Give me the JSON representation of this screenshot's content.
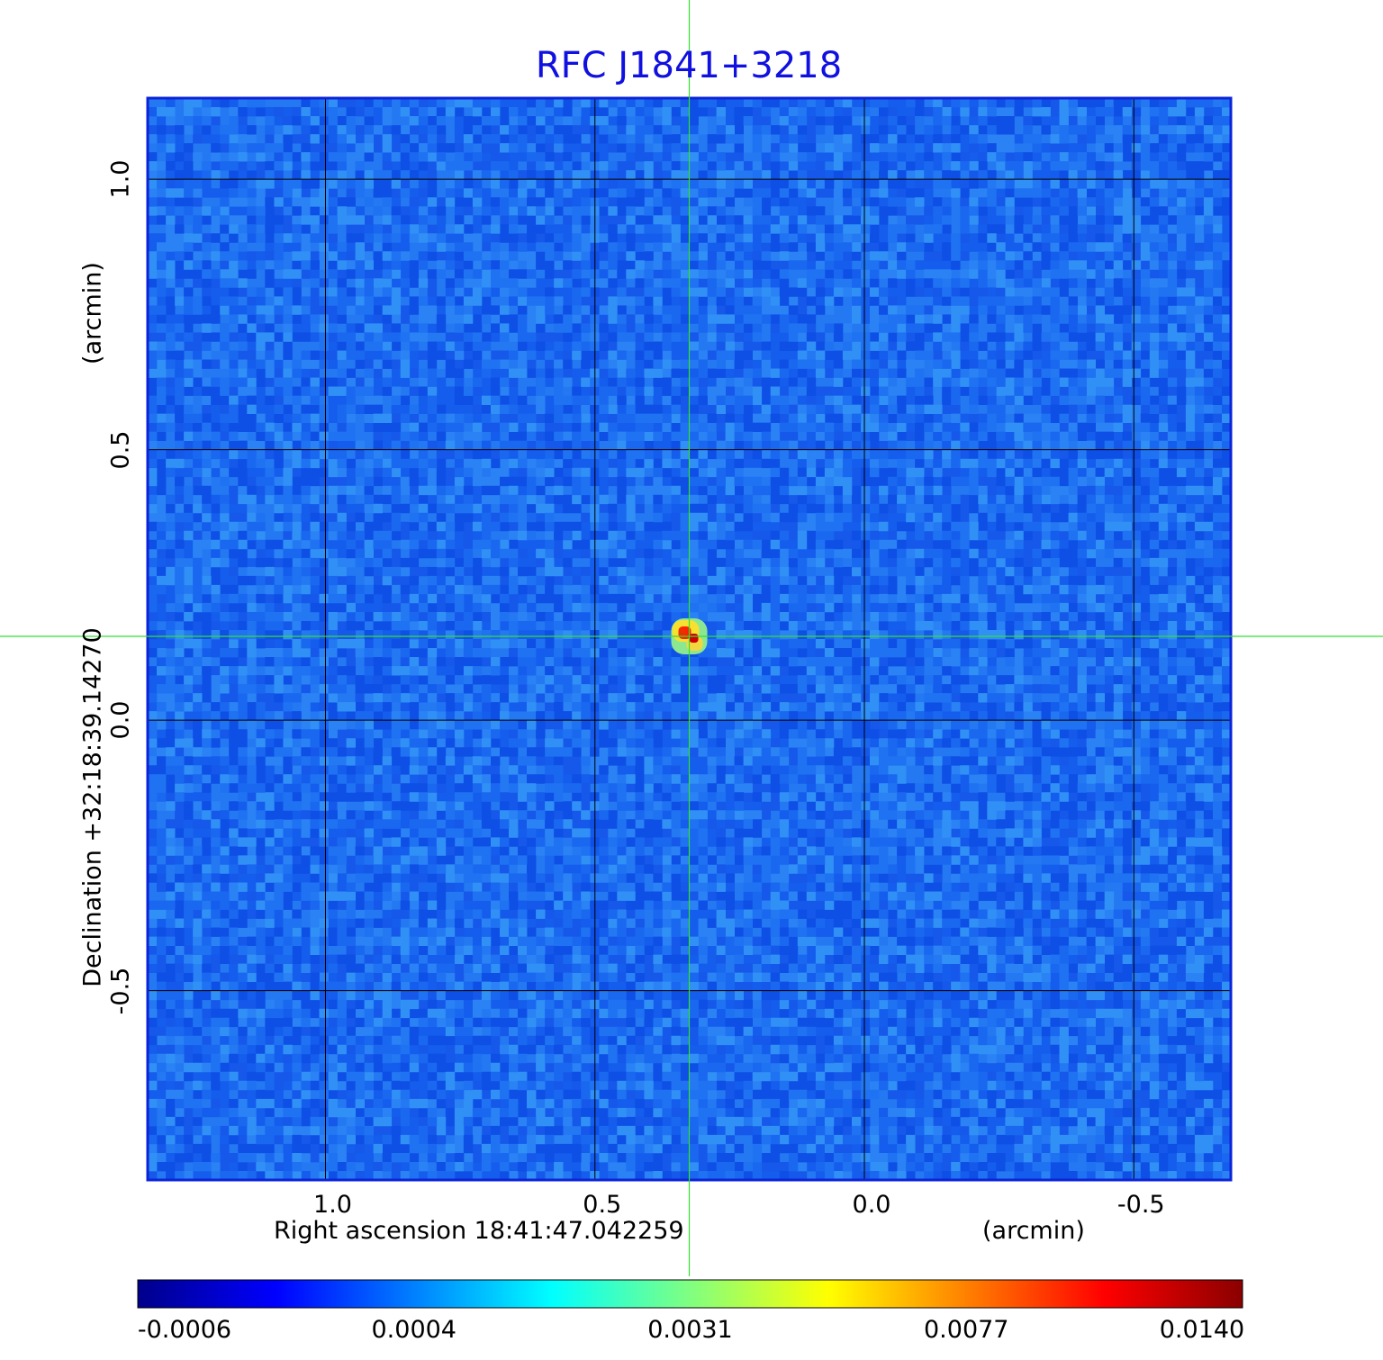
{
  "chart_data": {
    "type": "heatmap",
    "title": "RFC J1841+3218",
    "xlabel": "Right ascension  18:41:47.042259",
    "xunit": "(arcmin)",
    "ylabel": "Declination  +32:18:39.14270",
    "yunit": "(arcmin)",
    "xlim": [
      1.33,
      -0.68
    ],
    "ylim": [
      -0.85,
      1.15
    ],
    "xticks": [
      {
        "value": 1.0,
        "label": "1.0"
      },
      {
        "value": 0.5,
        "label": "0.5"
      },
      {
        "value": 0.0,
        "label": "0.0"
      },
      {
        "value": -0.5,
        "label": "-0.5"
      }
    ],
    "yticks": [
      {
        "value": 1.0,
        "label": "1.0"
      },
      {
        "value": 0.5,
        "label": "0.5"
      },
      {
        "value": 0.0,
        "label": "0.0"
      },
      {
        "value": -0.5,
        "label": "-0.5"
      }
    ],
    "grid": true,
    "crosshair": {
      "x": 0.325,
      "y": 0.155
    },
    "source": {
      "x": 0.325,
      "y": 0.155,
      "peak": 0.014
    },
    "colorbar": {
      "ticks": [
        "-0.0006",
        "0.0004",
        "0.0031",
        "0.0077",
        "0.0140"
      ],
      "colormap": [
        "#00008b",
        "#0000ff",
        "#0080ff",
        "#00ffff",
        "#80ff80",
        "#ffff00",
        "#ff8000",
        "#ff0000",
        "#8b0000"
      ]
    }
  },
  "colors": {
    "title": "#1010e0",
    "frame": "#0b24d8",
    "background_map": "#1c74f0",
    "grid": "#000000",
    "crosshair": "#33e033"
  }
}
